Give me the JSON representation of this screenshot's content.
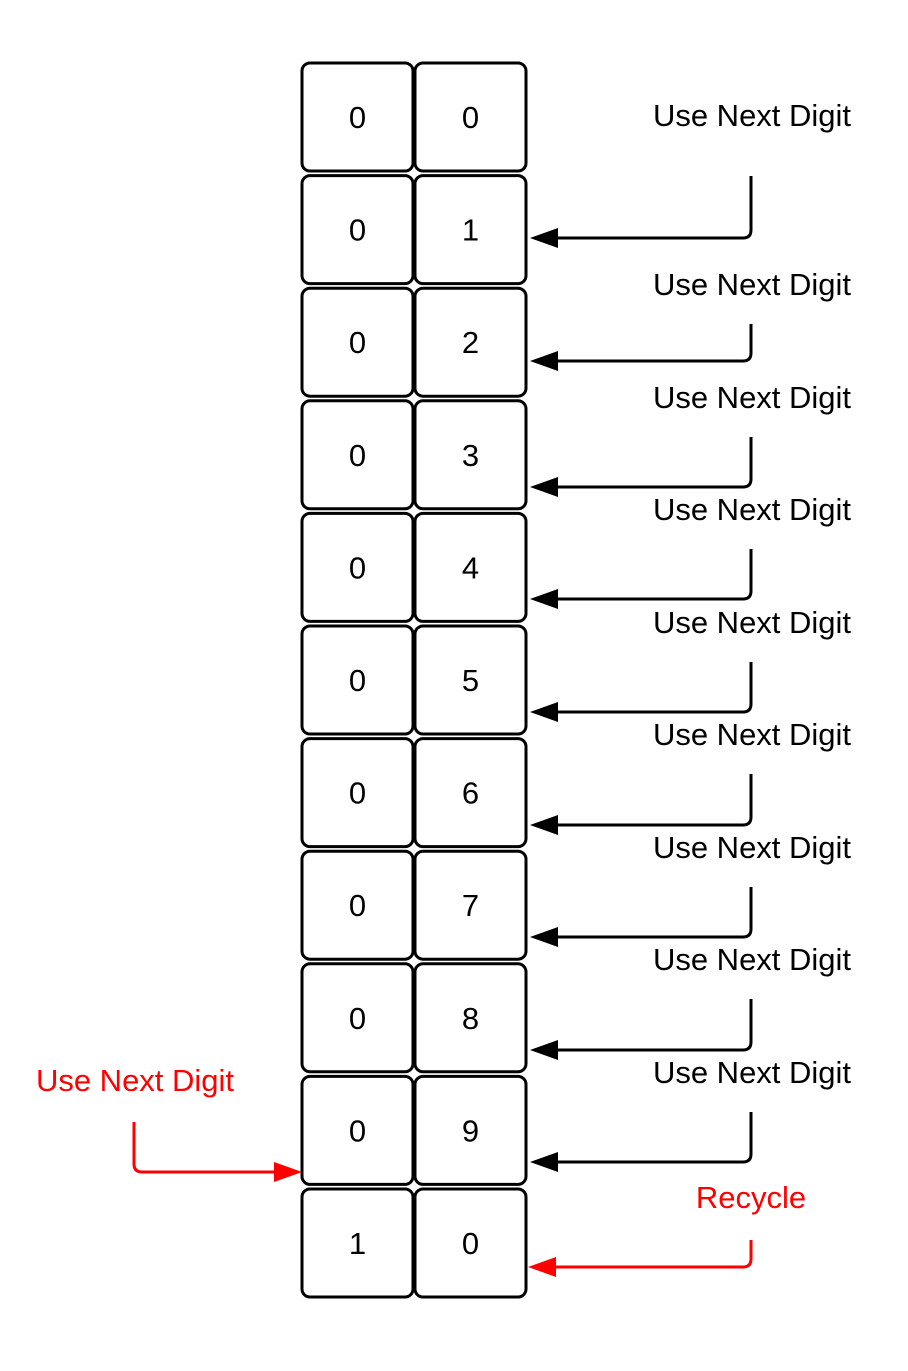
{
  "colors": {
    "line": "#000000",
    "accent": "#ff0000",
    "cell_fill": "#ffffff"
  },
  "table": {
    "rows": [
      {
        "left": "0",
        "right": "0"
      },
      {
        "left": "0",
        "right": "1"
      },
      {
        "left": "0",
        "right": "2"
      },
      {
        "left": "0",
        "right": "3"
      },
      {
        "left": "0",
        "right": "4"
      },
      {
        "left": "0",
        "right": "5"
      },
      {
        "left": "0",
        "right": "6"
      },
      {
        "left": "0",
        "right": "7"
      },
      {
        "left": "0",
        "right": "8"
      },
      {
        "left": "0",
        "right": "9"
      },
      {
        "left": "1",
        "right": "0"
      }
    ]
  },
  "annotations": {
    "right_labels": [
      "Use Next Digit",
      "Use Next Digit",
      "Use Next Digit",
      "Use Next Digit",
      "Use Next Digit",
      "Use Next Digit",
      "Use Next Digit",
      "Use Next Digit",
      "Use Next Digit"
    ],
    "recycle_label": "Recycle",
    "left_label": "Use Next Digit"
  }
}
